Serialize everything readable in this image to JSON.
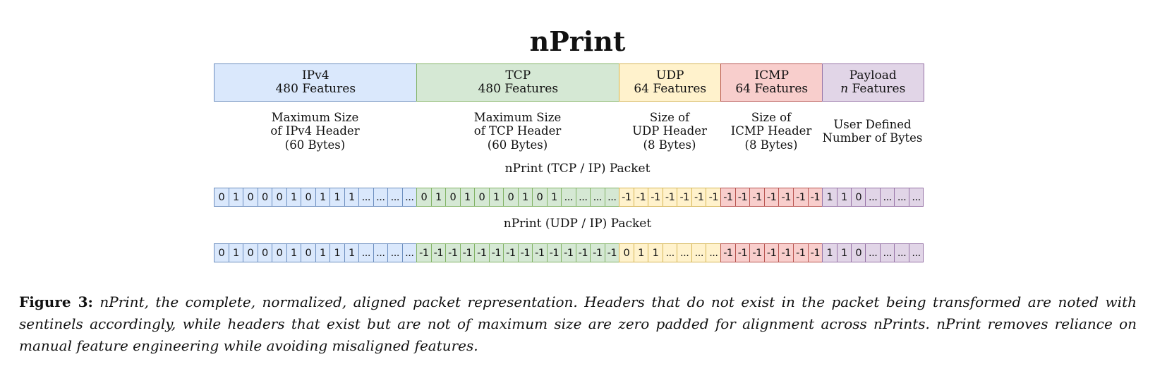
{
  "title": "nPrint",
  "colors": {
    "ipv4": {
      "fill": "#dae8fc",
      "stroke": "#6c8ebf"
    },
    "tcp": {
      "fill": "#d5e8d4",
      "stroke": "#82b366"
    },
    "udp": {
      "fill": "#fff2cc",
      "stroke": "#d6b656"
    },
    "icmp": {
      "fill": "#f8cecc",
      "stroke": "#b85450"
    },
    "payload": {
      "fill": "#e1d5e7",
      "stroke": "#9673a6"
    }
  },
  "headers": [
    {
      "key": "ipv4",
      "name": "IPv4",
      "features": "480 Features"
    },
    {
      "key": "tcp",
      "name": "TCP",
      "features": "480 Features"
    },
    {
      "key": "udp",
      "name": "UDP",
      "features": "64 Features"
    },
    {
      "key": "icmp",
      "name": "ICMP",
      "features": "64 Features"
    },
    {
      "key": "payload",
      "name": "Payload",
      "features_var": "n",
      "features": " Features"
    }
  ],
  "descriptions": [
    {
      "key": "ipv4",
      "lines": [
        "Maximum Size",
        "of IPv4 Header",
        "(60 Bytes)"
      ]
    },
    {
      "key": "tcp",
      "lines": [
        "Maximum Size",
        "of TCP Header",
        "(60 Bytes)"
      ]
    },
    {
      "key": "udp",
      "lines": [
        "Size of",
        "UDP Header",
        "(8 Bytes)"
      ]
    },
    {
      "key": "icmp",
      "lines": [
        "Size of",
        "ICMP Header",
        "(8 Bytes)"
      ]
    },
    {
      "key": "payload",
      "lines": [
        "User Defined",
        "Number of Bytes"
      ]
    }
  ],
  "packets": [
    {
      "label": "nPrint (TCP / IP) Packet",
      "segments": [
        {
          "key": "ipv4",
          "cells": [
            "0",
            "1",
            "0",
            "0",
            "0",
            "1",
            "0",
            "1",
            "1",
            "1",
            "...",
            "...",
            "...",
            "..."
          ]
        },
        {
          "key": "tcp",
          "cells": [
            "0",
            "1",
            "0",
            "1",
            "0",
            "1",
            "0",
            "1",
            "0",
            "1",
            "...",
            "...",
            "...",
            "..."
          ]
        },
        {
          "key": "udp",
          "cells": [
            "-1",
            "-1",
            "-1",
            "-1",
            "-1",
            "-1",
            "-1"
          ]
        },
        {
          "key": "icmp",
          "cells": [
            "-1",
            "-1",
            "-1",
            "-1",
            "-1",
            "-1",
            "-1"
          ]
        },
        {
          "key": "payload",
          "cells": [
            "1",
            "1",
            "0",
            "...",
            "...",
            "...",
            "..."
          ]
        }
      ]
    },
    {
      "label": "nPrint (UDP / IP) Packet",
      "segments": [
        {
          "key": "ipv4",
          "cells": [
            "0",
            "1",
            "0",
            "0",
            "0",
            "1",
            "0",
            "1",
            "1",
            "1",
            "...",
            "...",
            "...",
            "..."
          ]
        },
        {
          "key": "tcp",
          "cells": [
            "-1",
            "-1",
            "-1",
            "-1",
            "-1",
            "-1",
            "-1",
            "-1",
            "-1",
            "-1",
            "-1",
            "-1",
            "-1",
            "-1"
          ]
        },
        {
          "key": "udp",
          "cells": [
            "0",
            "1",
            "1",
            "...",
            "...",
            "...",
            "..."
          ]
        },
        {
          "key": "icmp",
          "cells": [
            "-1",
            "-1",
            "-1",
            "-1",
            "-1",
            "-1",
            "-1"
          ]
        },
        {
          "key": "payload",
          "cells": [
            "1",
            "1",
            "0",
            "...",
            "...",
            "...",
            "..."
          ]
        }
      ]
    }
  ],
  "caption": {
    "label": "Figure 3:",
    "text": "nPrint, the complete, normalized, aligned packet representation. Headers that do not exist in the packet being transformed are noted with sentinels accordingly, while headers that exist but are not of maximum size are zero padded for alignment across nPrints. nPrint removes reliance on manual feature engineering while avoiding misaligned features."
  }
}
